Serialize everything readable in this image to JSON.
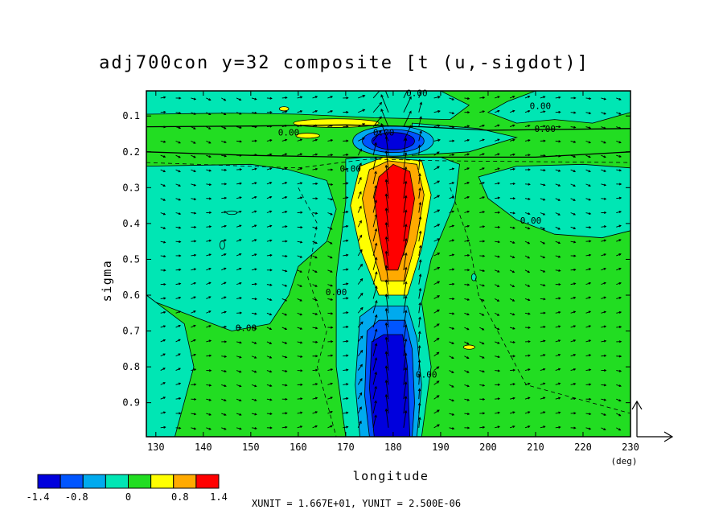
{
  "chart_data": {
    "type": "heatmap",
    "title": "adj700con y=32 composite [t (u,-sigdot)]",
    "xlabel": "longitude",
    "xunit_label": "(deg)",
    "ylabel": "sigma",
    "xlim": [
      128,
      230
    ],
    "ylim": [
      0.03,
      0.995
    ],
    "x_ticks": [
      130,
      140,
      150,
      160,
      170,
      180,
      190,
      200,
      210,
      220,
      230
    ],
    "y_ticks": [
      0.1,
      0.2,
      0.3,
      0.4,
      0.5,
      0.6,
      0.7,
      0.8,
      0.9
    ],
    "contour_label": "0.00",
    "colorbar": {
      "levels": [
        -1.4,
        -1.0,
        -0.6,
        -0.2,
        0.2,
        0.6,
        1.0,
        1.4
      ],
      "tick_labels": [
        "-1.4",
        "-0.8",
        "0",
        "0.8",
        "1.4"
      ],
      "colors": [
        "#0000dd",
        "#0055ff",
        "#00aaee",
        "#00e6b4",
        "#22dd22",
        "#ffff00",
        "#ffaa00",
        "#ff0000"
      ]
    },
    "vector_units": "XUNIT = 1.667E+01, YUNIT = 2.500E-06",
    "background_color": "#22dd22",
    "features": [
      {
        "sign": "negative",
        "level": -1.4,
        "center": [
          180,
          0.17
        ],
        "color": "#0000dd"
      },
      {
        "sign": "positive",
        "level": 1.4,
        "center": [
          180,
          0.38
        ],
        "color": "#ff0000"
      },
      {
        "sign": "negative",
        "level": -1.4,
        "center": [
          180,
          0.85
        ],
        "color": "#0000dd"
      },
      {
        "sign": "positive",
        "level": 0.6,
        "center": [
          176,
          0.12
        ],
        "color": "#ffff00"
      }
    ]
  }
}
